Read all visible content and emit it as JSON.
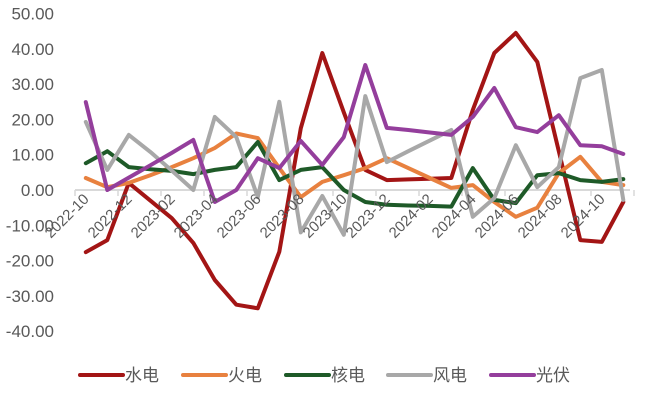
{
  "chart_data": {
    "type": "line",
    "title": "",
    "xlabel": "",
    "ylabel": "",
    "ylim": [
      -40,
      50
    ],
    "yticks": [
      "50.00",
      "40.00",
      "30.00",
      "20.00",
      "10.00",
      "0.00",
      "-10.00",
      "-20.00",
      "-30.00",
      "-40.00"
    ],
    "ytick_values": [
      50,
      40,
      30,
      20,
      10,
      0,
      -10,
      -20,
      -30,
      -40
    ],
    "grid": false,
    "legend_position": "bottom",
    "x": [
      "2022-10",
      "2022-11",
      "2022-12",
      "2023-01",
      "2023-02",
      "2023-03",
      "2023-04",
      "2023-05",
      "2023-06",
      "2023-07",
      "2023-08",
      "2023-09",
      "2023-10",
      "2023-11",
      "2023-12",
      "2024-01",
      "2024-02",
      "2024-03",
      "2024-04",
      "2024-05",
      "2024-06",
      "2024-07",
      "2024-08",
      "2024-09",
      "2024-10",
      "2024-11"
    ],
    "xtick_labels": [
      "2022-10",
      "2022-12",
      "2023-02",
      "2023-04",
      "2023-06",
      "2023-08",
      "2023-10",
      "2023-12",
      "2024-02",
      "2024-04",
      "2024-06",
      "2024-08",
      "2024-10"
    ],
    "series": [
      {
        "name": "水电",
        "color": "#A31515",
        "values": [
          -17.6,
          -14.2,
          2.0,
          -3.0,
          -8.0,
          -15.0,
          -25.5,
          -32.5,
          -33.5,
          -17.5,
          17.5,
          38.8,
          22.0,
          5.7,
          2.8,
          3.0,
          3.2,
          3.4,
          22.7,
          38.8,
          44.5,
          36.3,
          11.0,
          -14.2,
          -14.7,
          -3.4
        ]
      },
      {
        "name": "火电",
        "color": "#E8813F",
        "values": [
          3.4,
          0.8,
          2.0,
          4.2,
          6.5,
          9.0,
          11.9,
          16.0,
          14.7,
          6.2,
          -2.0,
          2.3,
          4.2,
          6.2,
          9.0,
          6.2,
          3.4,
          0.6,
          1.4,
          -3.4,
          -7.6,
          -5.0,
          4.8,
          9.4,
          2.3,
          1.4
        ]
      },
      {
        "name": "核电",
        "color": "#1E5A28",
        "values": [
          7.6,
          11.0,
          6.5,
          5.9,
          5.4,
          4.5,
          5.7,
          6.5,
          13.6,
          2.8,
          5.7,
          6.5,
          0.0,
          -3.4,
          -4.2,
          -4.4,
          -4.5,
          -4.7,
          6.2,
          -2.8,
          -3.7,
          4.2,
          4.8,
          2.8,
          2.3,
          3.1
        ]
      },
      {
        "name": "风电",
        "color": "#A8A8A8",
        "values": [
          19.3,
          5.7,
          15.6,
          10.8,
          5.5,
          0.0,
          20.7,
          15.0,
          -2.0,
          25.0,
          -12.0,
          -1.7,
          -12.7,
          26.6,
          7.9,
          11.0,
          14.0,
          17.0,
          -7.6,
          -2.3,
          12.7,
          0.8,
          6.5,
          31.7,
          34.0,
          -2.8
        ]
      },
      {
        "name": "光伏",
        "color": "#943E9C",
        "values": [
          24.9,
          0.0,
          3.5,
          7.0,
          10.5,
          14.2,
          -3.4,
          0.0,
          9.0,
          6.2,
          13.9,
          7.1,
          15.0,
          35.4,
          17.6,
          17.0,
          16.3,
          15.6,
          20.7,
          28.9,
          17.8,
          16.4,
          21.2,
          12.7,
          12.4,
          10.2
        ]
      }
    ]
  },
  "legend": {
    "items": [
      {
        "label": "水电",
        "color": "#A31515"
      },
      {
        "label": "火电",
        "color": "#E8813F"
      },
      {
        "label": "核电",
        "color": "#1E5A28"
      },
      {
        "label": "风电",
        "color": "#A8A8A8"
      },
      {
        "label": "光伏",
        "color": "#943E9C"
      }
    ]
  },
  "colors": {
    "axis": "#D9D9D9",
    "tick_text": "#595959"
  }
}
